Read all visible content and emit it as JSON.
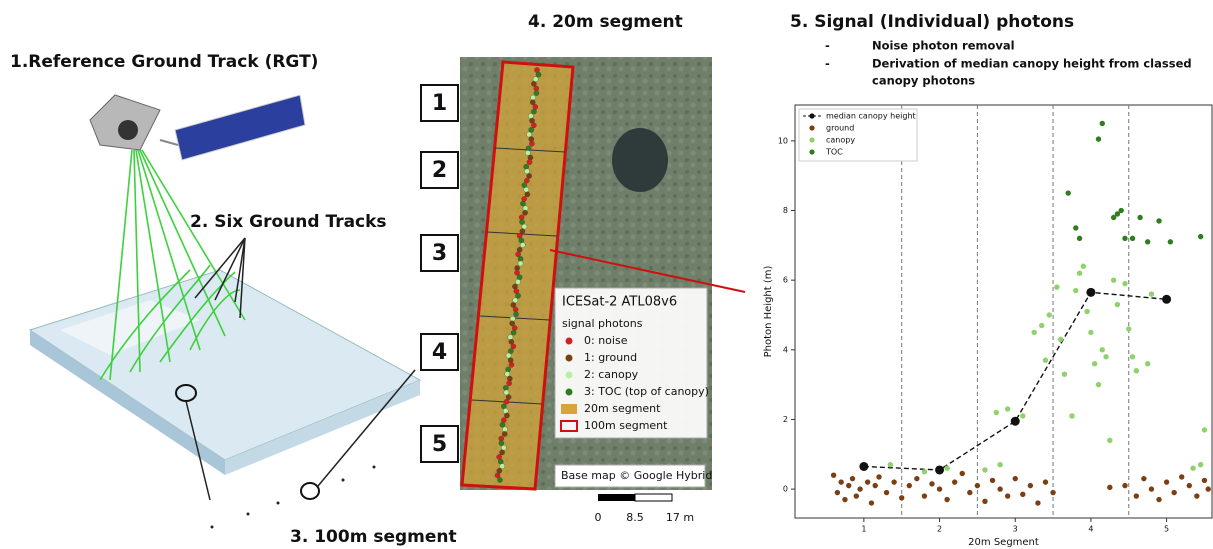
{
  "panel1": {
    "title": "1.Reference Ground Track (RGT)",
    "tracks_label": "2. Six Ground Tracks",
    "segment_label": "3. 100m segment"
  },
  "panel2": {
    "title": "4. 20m segment",
    "segment_numbers": [
      "1",
      "2",
      "3",
      "4",
      "5"
    ],
    "legend": {
      "title": "ICESat-2 ATL08v6",
      "subtitle": "signal photons",
      "items": [
        "0: noise",
        "1: ground",
        "2: canopy",
        "3: TOC (top of canopy)",
        "20m segment",
        "100m segment"
      ]
    },
    "credit": "Base map © Google Hybrid",
    "scale": [
      "0",
      "8.5",
      "17 m"
    ]
  },
  "panel3": {
    "title": "5. Signal (Individual) photons",
    "bullet_marker": "-",
    "bullets": [
      "Noise photon removal",
      "Derivation of median canopy height from classed",
      "canopy photons"
    ]
  },
  "chart_data": {
    "type": "scatter",
    "x_label": "20m Segment",
    "y_label": "Photon Height (m)",
    "xlim": [
      0.09,
      5.6
    ],
    "ylim": [
      -0.83,
      11.03
    ],
    "xticks": [
      1,
      2,
      3,
      4,
      5
    ],
    "yticks": [
      0,
      2,
      4,
      6,
      8,
      10
    ],
    "series": [
      {
        "name": "median canopy height",
        "color": "#111111",
        "line": true,
        "x": [
          1,
          2,
          3,
          4,
          5
        ],
        "y": [
          0.65,
          0.55,
          1.95,
          5.65,
          5.45
        ]
      },
      {
        "name": "ground",
        "color": "#7b3f14",
        "x": [
          0.6,
          0.65,
          0.7,
          0.75,
          0.8,
          0.85,
          0.9,
          0.95,
          1.05,
          1.1,
          1.15,
          1.2,
          1.3,
          1.4,
          1.5,
          1.6,
          1.7,
          1.8,
          1.9,
          2.0,
          2.1,
          2.2,
          2.3,
          2.4,
          2.5,
          2.6,
          2.7,
          2.8,
          2.9,
          3.0,
          3.1,
          3.2,
          3.3,
          3.4,
          3.5,
          4.25,
          4.45,
          4.6,
          4.7,
          4.8,
          4.9,
          5.0,
          5.1,
          5.2,
          5.3,
          5.4,
          5.5,
          5.55
        ],
        "y": [
          0.4,
          -0.1,
          0.2,
          -0.3,
          0.1,
          0.3,
          -0.2,
          0.0,
          0.2,
          -0.4,
          0.1,
          0.35,
          -0.1,
          0.2,
          -0.25,
          0.1,
          0.3,
          -0.2,
          0.15,
          0.0,
          -0.3,
          0.2,
          0.45,
          -0.1,
          0.1,
          -0.35,
          0.25,
          0.0,
          -0.2,
          0.3,
          -0.15,
          0.1,
          -0.4,
          0.2,
          -0.1,
          0.05,
          0.1,
          -0.2,
          0.3,
          0.0,
          -0.3,
          0.2,
          -0.1,
          0.35,
          0.1,
          -0.2,
          0.25,
          0.0
        ]
      },
      {
        "name": "canopy",
        "color": "#8fd16a",
        "x": [
          1.35,
          1.8,
          2.1,
          2.6,
          2.75,
          2.8,
          2.9,
          3.1,
          3.25,
          3.35,
          3.4,
          3.45,
          3.55,
          3.6,
          3.65,
          3.75,
          3.8,
          3.85,
          3.9,
          3.95,
          4.0,
          4.05,
          4.1,
          4.15,
          4.2,
          4.25,
          4.3,
          4.35,
          4.45,
          4.5,
          4.55,
          4.6,
          4.75,
          4.8,
          5.35,
          5.45,
          5.5
        ],
        "y": [
          0.7,
          0.5,
          0.6,
          0.55,
          2.2,
          0.7,
          2.3,
          2.1,
          4.5,
          4.7,
          3.7,
          5.0,
          5.8,
          4.3,
          3.3,
          2.1,
          5.7,
          6.2,
          6.4,
          5.1,
          4.5,
          3.6,
          3.0,
          4.0,
          3.8,
          1.4,
          6.0,
          5.3,
          5.9,
          4.6,
          3.8,
          3.4,
          3.6,
          5.6,
          0.6,
          0.7,
          1.7
        ]
      },
      {
        "name": "TOC",
        "color": "#2e7d1f",
        "x": [
          3.7,
          3.8,
          3.85,
          4.1,
          4.15,
          4.3,
          4.35,
          4.4,
          4.45,
          4.55,
          4.65,
          4.75,
          4.9,
          5.05,
          5.45
        ],
        "y": [
          8.5,
          7.5,
          7.2,
          10.05,
          10.5,
          7.8,
          7.9,
          8.0,
          7.2,
          7.2,
          7.8,
          7.1,
          7.7,
          7.1,
          7.25
        ]
      }
    ]
  }
}
